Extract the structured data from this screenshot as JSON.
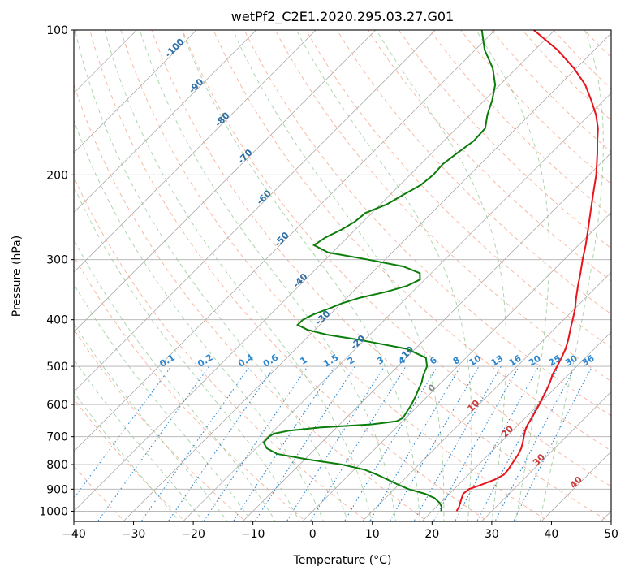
{
  "chart_data": {
    "type": "line",
    "title": "wetPf2_C2E1.2020.295.03.27.G01",
    "xlabel": "Temperature (°C)",
    "ylabel": "Pressure (hPa)",
    "xlim": [
      -40,
      50
    ],
    "ylim": [
      1050,
      100
    ],
    "y_scale": "log",
    "grid": true,
    "x_ticks": [
      -40,
      -30,
      -20,
      -10,
      0,
      10,
      20,
      30,
      40,
      50
    ],
    "x_tick_labels": [
      "−40",
      "−30",
      "−20",
      "−10",
      "0",
      "10",
      "20",
      "30",
      "40",
      "50"
    ],
    "y_ticks": [
      100,
      200,
      300,
      400,
      500,
      600,
      700,
      800,
      900,
      1000
    ],
    "y_tick_labels": [
      "100",
      "200",
      "300",
      "400",
      "500",
      "600",
      "700",
      "800",
      "900",
      "1000"
    ],
    "series": [
      {
        "color": "#e8141b",
        "pressure": [
          1000,
          980,
          960,
          940,
          920,
          900,
          880,
          860,
          840,
          820,
          800,
          780,
          760,
          740,
          720,
          700,
          680,
          660,
          640,
          620,
          600,
          580,
          560,
          540,
          520,
          500,
          480,
          460,
          440,
          420,
          400,
          380,
          360,
          340,
          320,
          300,
          280,
          260,
          240,
          220,
          200,
          180,
          170,
          160,
          150,
          140,
          130,
          120,
          110,
          100
        ],
        "temperature": [
          24.1,
          23.8,
          23.3,
          22.8,
          22.3,
          22.5,
          23.9,
          25.2,
          25.9,
          25.8,
          25.5,
          25.2,
          24.9,
          24.4,
          23.7,
          22.9,
          22.1,
          21.5,
          21.1,
          20.6,
          20.1,
          19.5,
          18.9,
          18.2,
          17.3,
          16.7,
          16.0,
          15.2,
          14.1,
          12.8,
          11.5,
          10.1,
          8.4,
          6.7,
          5.0,
          3.1,
          1.2,
          -1.0,
          -3.4,
          -6.0,
          -8.8,
          -12.3,
          -14.3,
          -16.3,
          -18.9,
          -22.1,
          -25.7,
          -30.4,
          -36.2,
          -43.5
        ]
      },
      {
        "color": "#0a7d0a",
        "pressure": [
          1000,
          980,
          960,
          940,
          920,
          900,
          880,
          860,
          840,
          820,
          800,
          780,
          760,
          740,
          720,
          700,
          690,
          680,
          670,
          660,
          650,
          640,
          620,
          600,
          580,
          560,
          540,
          520,
          500,
          480,
          460,
          440,
          430,
          420,
          410,
          400,
          390,
          380,
          370,
          360,
          350,
          340,
          330,
          320,
          310,
          300,
          290,
          280,
          270,
          260,
          250,
          240,
          230,
          220,
          210,
          200,
          190,
          180,
          170,
          160,
          150,
          140,
          130,
          120,
          110,
          100
        ],
        "dewpoint": [
          21.5,
          20.9,
          19.8,
          18.3,
          15.9,
          12.4,
          9.8,
          7.3,
          4.7,
          1.8,
          -2.9,
          -9.7,
          -15.6,
          -18.2,
          -19.7,
          -19.8,
          -19.5,
          -17.4,
          -12.8,
          -4.6,
          -1.0,
          -0.5,
          -0.9,
          -1.3,
          -1.9,
          -2.6,
          -3.3,
          -4.3,
          -5.1,
          -6.7,
          -11.4,
          -21.1,
          -27.0,
          -31.2,
          -33.7,
          -33.7,
          -32.8,
          -31.3,
          -29.9,
          -27.8,
          -24.4,
          -21.9,
          -20.8,
          -21.9,
          -25.8,
          -32.8,
          -40.7,
          -44.3,
          -43.7,
          -42.3,
          -41.4,
          -41.1,
          -38.9,
          -37.8,
          -36.5,
          -36.1,
          -36.3,
          -35.7,
          -35.0,
          -35.2,
          -37.1,
          -38.7,
          -40.8,
          -44.0,
          -48.4,
          -52.2
        ]
      }
    ],
    "dry_adiabat_labels": [
      "-100",
      "-90",
      "-80",
      "-70",
      "-60",
      "-50",
      "-40",
      "-30",
      "-20",
      "-10",
      "0",
      "10",
      "20",
      "30",
      "40"
    ],
    "mixing_ratio_labels": [
      "0.1",
      "0.2",
      "0.4",
      "0.6",
      "1",
      "1.5",
      "2",
      "3",
      "4",
      "6",
      "8",
      "10",
      "13",
      "16",
      "20",
      "25",
      "30",
      "36"
    ]
  }
}
